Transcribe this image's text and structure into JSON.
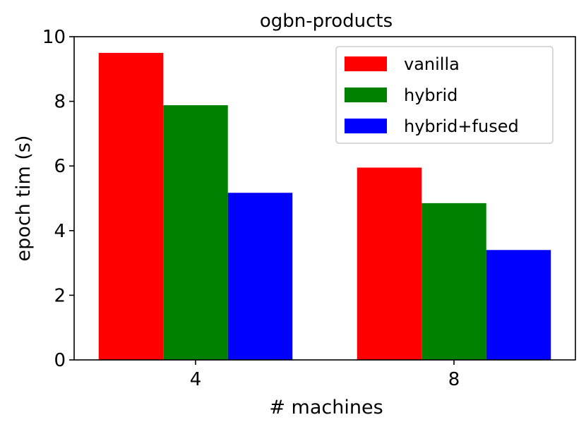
{
  "chart_data": {
    "type": "bar",
    "title": "ogbn-products",
    "xlabel": "# machines",
    "ylabel": "epoch tim (s)",
    "categories": [
      "4",
      "8"
    ],
    "series": [
      {
        "name": "vanilla",
        "color": "#ff0000",
        "values": [
          9.5,
          5.95
        ]
      },
      {
        "name": "hybrid",
        "color": "#008000",
        "values": [
          7.88,
          4.85
        ]
      },
      {
        "name": "hybrid+fused",
        "color": "#0000ff",
        "values": [
          5.17,
          3.4
        ]
      }
    ],
    "ylim": [
      0,
      10
    ],
    "yticks": [
      "0",
      "2",
      "4",
      "6",
      "8",
      "10"
    ],
    "grid": false,
    "legend_position": "top-right"
  }
}
